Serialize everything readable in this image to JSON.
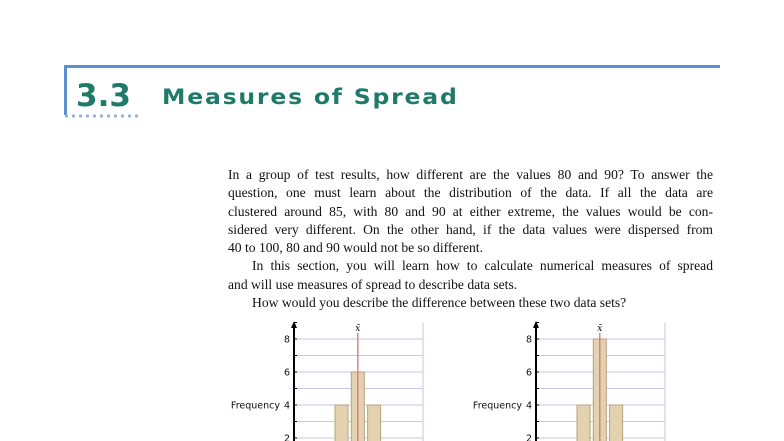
{
  "section": {
    "number": "3.3",
    "title": "Measures of Spread"
  },
  "paragraph_lines": [
    "In a group of test results, how different are the values 80 and 90? To answer the",
    "question, one must learn about the distribution of the data. If all the data are",
    "clustered around 85, with 80 and 90 at either extreme, the values would be con-",
    "sidered very different. On the other hand, if the data values were dispersed from",
    "40 to 100, 80 and 90 would not be so different.",
    "In this section, you will learn how to calculate numerical measures of spread",
    "and will use measures of spread to describe data sets.",
    "How would you describe the difference between these two data sets?"
  ],
  "colors": {
    "heading": "#1f7a68",
    "rule": "#5b8fd0",
    "bar": "#e3d2b0",
    "bar_edge": "#b9a27c",
    "mean_line": "#e0707a",
    "grid": "#c6c6e8"
  },
  "chart_data": [
    {
      "type": "bar",
      "ylabel": "Frequency",
      "yticks": [
        "2",
        "4",
        "6",
        "8"
      ],
      "mean_label": "x̄",
      "values": [
        4,
        6,
        4
      ],
      "grid": true
    },
    {
      "type": "bar",
      "ylabel": "Frequency",
      "yticks": [
        "2",
        "4",
        "6",
        "8"
      ],
      "mean_label": "x̄",
      "values": [
        4,
        8,
        4
      ],
      "grid": true
    }
  ]
}
